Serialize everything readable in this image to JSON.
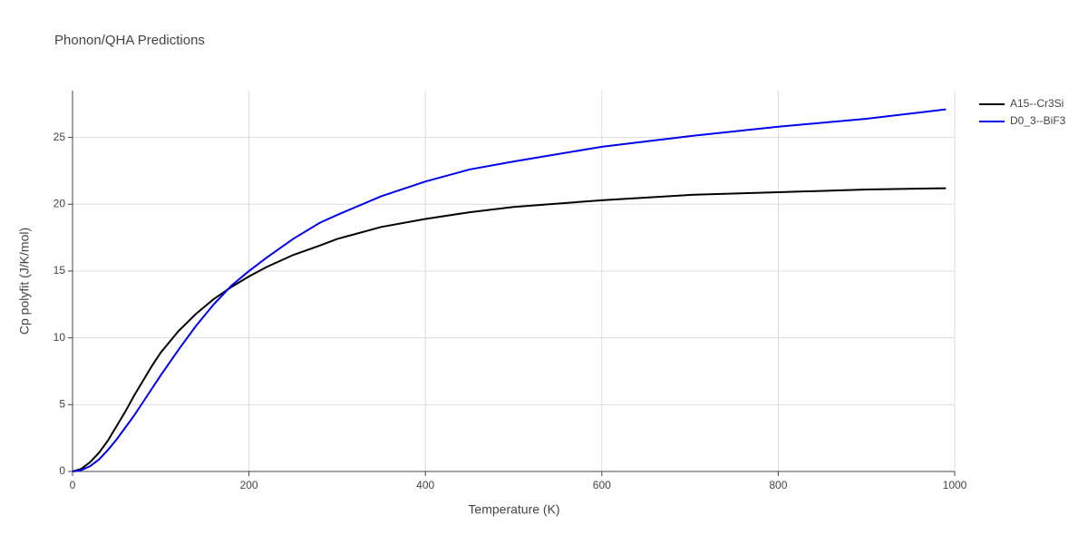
{
  "chart_data": {
    "type": "line",
    "title": "Phonon/QHA Predictions",
    "x_label": "Temperature (K)",
    "y_label": "Cp polyfit (J/K/mol)",
    "x": [
      0,
      10,
      20,
      30,
      40,
      50,
      60,
      70,
      80,
      90,
      100,
      120,
      140,
      160,
      180,
      200,
      220,
      250,
      280,
      300,
      350,
      400,
      450,
      500,
      600,
      700,
      800,
      900,
      990
    ],
    "series": [
      {
        "name": "A15--Cr3Si",
        "color": "#000000",
        "values": [
          0,
          0.2,
          0.7,
          1.4,
          2.3,
          3.4,
          4.5,
          5.7,
          6.8,
          7.9,
          8.9,
          10.5,
          11.8,
          12.9,
          13.8,
          14.6,
          15.3,
          16.2,
          16.9,
          17.4,
          18.3,
          18.9,
          19.4,
          19.8,
          20.3,
          20.7,
          20.9,
          21.1,
          21.2
        ]
      },
      {
        "name": "D0_3--BiF3",
        "color": "#0000ee",
        "values": [
          0,
          0.1,
          0.4,
          0.9,
          1.6,
          2.4,
          3.3,
          4.2,
          5.2,
          6.2,
          7.2,
          9.1,
          10.9,
          12.5,
          13.9,
          15.0,
          16.0,
          17.4,
          18.6,
          19.2,
          20.6,
          21.7,
          22.6,
          23.2,
          24.3,
          25.1,
          25.8,
          26.4,
          27.1
        ]
      }
    ],
    "xlim": [
      0,
      1000
    ],
    "xticks": [
      0,
      200,
      400,
      600,
      800,
      1000
    ],
    "ylim": [
      0,
      28.5
    ],
    "yticks": [
      0,
      5,
      10,
      15,
      20,
      25
    ],
    "grid": true,
    "legend": "right"
  }
}
